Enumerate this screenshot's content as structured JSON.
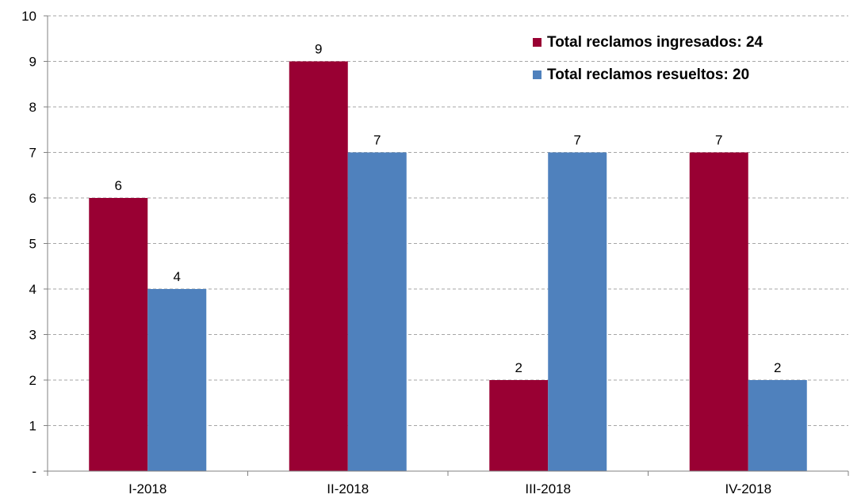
{
  "chart_data": {
    "type": "bar",
    "title": "",
    "xlabel": "",
    "ylabel": "",
    "categories": [
      "I-2018",
      "II-2018",
      "III-2018",
      "IV-2018"
    ],
    "series": [
      {
        "name": "Total reclamos ingresados: 24",
        "values": [
          6,
          9,
          2,
          7
        ],
        "color": "#990033"
      },
      {
        "name": "Total reclamos resueltos: 20",
        "values": [
          4,
          7,
          7,
          2
        ],
        "color": "#4f81bd"
      }
    ],
    "ylim": [
      0,
      10
    ],
    "y_ticks": [
      "-",
      "1",
      "2",
      "3",
      "4",
      "5",
      "6",
      "7",
      "8",
      "9",
      "10"
    ],
    "grid": true,
    "grid_style": "dashed",
    "legend_position": "top-right",
    "data_labels": true
  }
}
